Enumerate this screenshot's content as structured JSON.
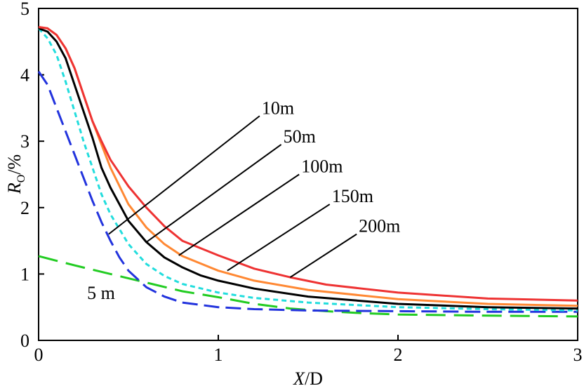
{
  "chart_data": {
    "type": "line",
    "title": "",
    "xlabel": {
      "var": "X",
      "rest": "/D"
    },
    "ylabel": {
      "var": "R",
      "sub": "O",
      "rest": "/%"
    },
    "xlim": [
      0,
      3
    ],
    "ylim": [
      0,
      5
    ],
    "x_ticks": [
      0,
      1,
      2,
      3
    ],
    "y_ticks": [
      0,
      1,
      2,
      3,
      4,
      5
    ],
    "x_tick_labels": [
      "0",
      "1",
      "2",
      "3"
    ],
    "y_tick_labels": [
      "0",
      "1",
      "2",
      "3",
      "4",
      "5"
    ],
    "grid": false,
    "series": [
      {
        "name": "5 m",
        "color": "#22cc22",
        "dash": "long-dash",
        "points": [
          [
            0,
            1.27
          ],
          [
            0.2,
            1.13
          ],
          [
            0.4,
            1.0
          ],
          [
            0.6,
            0.87
          ],
          [
            0.8,
            0.74
          ],
          [
            1.0,
            0.65
          ],
          [
            1.2,
            0.55
          ],
          [
            1.4,
            0.48
          ],
          [
            1.6,
            0.44
          ],
          [
            1.8,
            0.41
          ],
          [
            2.0,
            0.39
          ],
          [
            2.3,
            0.38
          ],
          [
            2.6,
            0.37
          ],
          [
            3.0,
            0.36
          ]
        ]
      },
      {
        "name": "10m",
        "color": "#2233dd",
        "dash": "dash",
        "points": [
          [
            0,
            4.05
          ],
          [
            0.05,
            3.85
          ],
          [
            0.1,
            3.5
          ],
          [
            0.15,
            3.15
          ],
          [
            0.2,
            2.8
          ],
          [
            0.25,
            2.45
          ],
          [
            0.3,
            2.1
          ],
          [
            0.35,
            1.78
          ],
          [
            0.4,
            1.5
          ],
          [
            0.45,
            1.25
          ],
          [
            0.5,
            1.05
          ],
          [
            0.6,
            0.8
          ],
          [
            0.7,
            0.66
          ],
          [
            0.8,
            0.57
          ],
          [
            1.0,
            0.5
          ],
          [
            1.2,
            0.47
          ],
          [
            1.5,
            0.45
          ],
          [
            2.0,
            0.44
          ],
          [
            2.5,
            0.43
          ],
          [
            3.0,
            0.43
          ]
        ]
      },
      {
        "name": "50m",
        "color": "#22dddd",
        "dash": "short-dash",
        "points": [
          [
            0,
            4.7
          ],
          [
            0.05,
            4.55
          ],
          [
            0.1,
            4.3
          ],
          [
            0.15,
            3.9
          ],
          [
            0.2,
            3.45
          ],
          [
            0.25,
            3.0
          ],
          [
            0.3,
            2.6
          ],
          [
            0.35,
            2.2
          ],
          [
            0.4,
            1.9
          ],
          [
            0.5,
            1.45
          ],
          [
            0.6,
            1.15
          ],
          [
            0.7,
            0.97
          ],
          [
            0.8,
            0.85
          ],
          [
            1.0,
            0.72
          ],
          [
            1.2,
            0.64
          ],
          [
            1.5,
            0.57
          ],
          [
            2.0,
            0.5
          ],
          [
            2.5,
            0.47
          ],
          [
            3.0,
            0.45
          ]
        ]
      },
      {
        "name": "100m",
        "color": "#000000",
        "dash": "solid",
        "points": [
          [
            0,
            4.7
          ],
          [
            0.05,
            4.65
          ],
          [
            0.1,
            4.5
          ],
          [
            0.15,
            4.25
          ],
          [
            0.2,
            3.85
          ],
          [
            0.25,
            3.45
          ],
          [
            0.3,
            3.05
          ],
          [
            0.35,
            2.6
          ],
          [
            0.4,
            2.3
          ],
          [
            0.5,
            1.8
          ],
          [
            0.6,
            1.48
          ],
          [
            0.7,
            1.25
          ],
          [
            0.8,
            1.1
          ],
          [
            0.9,
            0.98
          ],
          [
            1.0,
            0.9
          ],
          [
            1.2,
            0.78
          ],
          [
            1.5,
            0.66
          ],
          [
            2.0,
            0.55
          ],
          [
            2.5,
            0.5
          ],
          [
            3.0,
            0.48
          ]
        ]
      },
      {
        "name": "150m",
        "color": "#ff8833",
        "dash": "solid",
        "points": [
          [
            0,
            4.72
          ],
          [
            0.05,
            4.7
          ],
          [
            0.1,
            4.6
          ],
          [
            0.15,
            4.4
          ],
          [
            0.2,
            4.1
          ],
          [
            0.25,
            3.7
          ],
          [
            0.3,
            3.3
          ],
          [
            0.35,
            2.95
          ],
          [
            0.4,
            2.6
          ],
          [
            0.5,
            2.05
          ],
          [
            0.6,
            1.7
          ],
          [
            0.7,
            1.45
          ],
          [
            0.8,
            1.27
          ],
          [
            1.0,
            1.05
          ],
          [
            1.2,
            0.9
          ],
          [
            1.5,
            0.76
          ],
          [
            2.0,
            0.62
          ],
          [
            2.5,
            0.55
          ],
          [
            3.0,
            0.52
          ]
        ]
      },
      {
        "name": "200m",
        "color": "#ee3333",
        "dash": "solid",
        "points": [
          [
            0,
            4.72
          ],
          [
            0.05,
            4.7
          ],
          [
            0.1,
            4.6
          ],
          [
            0.15,
            4.4
          ],
          [
            0.2,
            4.1
          ],
          [
            0.25,
            3.7
          ],
          [
            0.3,
            3.3
          ],
          [
            0.35,
            3.0
          ],
          [
            0.4,
            2.72
          ],
          [
            0.5,
            2.32
          ],
          [
            0.6,
            2.0
          ],
          [
            0.7,
            1.72
          ],
          [
            0.8,
            1.5
          ],
          [
            1.0,
            1.28
          ],
          [
            1.2,
            1.08
          ],
          [
            1.4,
            0.95
          ],
          [
            1.6,
            0.84
          ],
          [
            2.0,
            0.72
          ],
          [
            2.5,
            0.63
          ],
          [
            3.0,
            0.6
          ]
        ]
      }
    ],
    "annotations": [
      {
        "text": "10m",
        "label_at": [
          1.23,
          3.38
        ],
        "point_at": [
          0.39,
          1.6
        ]
      },
      {
        "text": "50m",
        "label_at": [
          1.35,
          2.95
        ],
        "point_at": [
          0.6,
          1.48
        ]
      },
      {
        "text": "100m",
        "label_at": [
          1.45,
          2.5
        ],
        "point_at": [
          0.78,
          1.28
        ]
      },
      {
        "text": "150m",
        "label_at": [
          1.62,
          2.05
        ],
        "point_at": [
          1.05,
          1.05
        ]
      },
      {
        "text": "200m",
        "label_at": [
          1.77,
          1.6
        ],
        "point_at": [
          1.4,
          0.95
        ]
      },
      {
        "text": "5 m",
        "label_at": [
          0.27,
          0.72
        ],
        "point_at": null
      }
    ]
  }
}
